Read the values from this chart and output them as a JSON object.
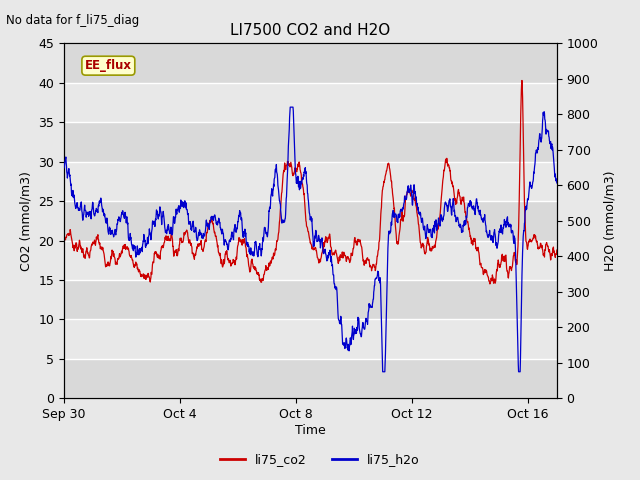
{
  "title": "LI7500 CO2 and H2O",
  "top_left_text": "No data for f_li75_diag",
  "xlabel": "Time",
  "ylabel_left": "CO2 (mmol/m3)",
  "ylabel_right": "H2O (mmol/m3)",
  "ylim_left": [
    0,
    45
  ],
  "ylim_right": [
    0,
    1000
  ],
  "yticks_left": [
    0,
    5,
    10,
    15,
    20,
    25,
    30,
    35,
    40,
    45
  ],
  "yticks_right": [
    0,
    100,
    200,
    300,
    400,
    500,
    600,
    700,
    800,
    900,
    1000
  ],
  "xtick_labels": [
    "Sep 30",
    "Oct 4",
    "Oct 8",
    "Oct 12",
    "Oct 16"
  ],
  "legend_labels": [
    "li75_co2",
    "li75_h2o"
  ],
  "legend_colors": [
    "#cc0000",
    "#0000cc"
  ],
  "ee_flux_label": "EE_flux",
  "ee_flux_bg": "#ffffcc",
  "ee_flux_border": "#999900",
  "ee_flux_text_color": "#aa0000",
  "fig_bg": "#e8e8e8",
  "band_light": "#e8e8e8",
  "band_dark": "#d0d0d0",
  "co2_color": "#cc0000",
  "h2o_color": "#0000cc",
  "linewidth": 0.9
}
